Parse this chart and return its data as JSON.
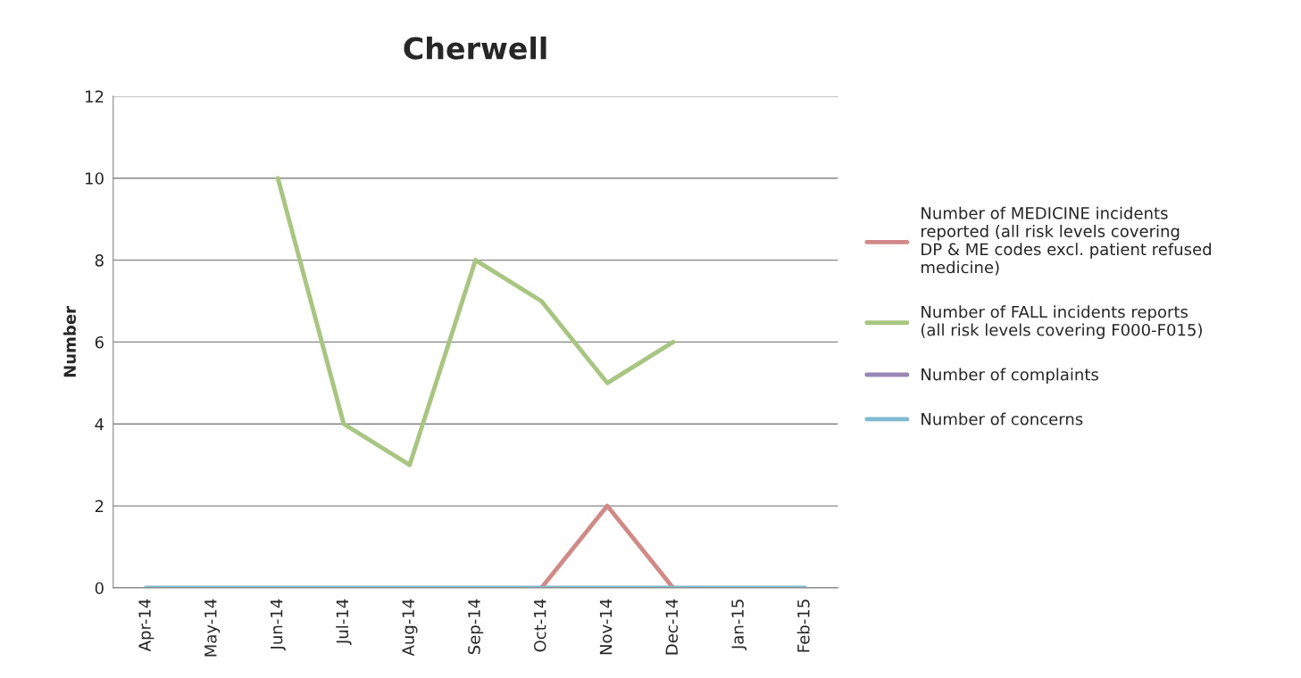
{
  "chart_data": {
    "type": "line",
    "title": "Cherwell",
    "ylabel": "Number",
    "categories": [
      "Apr-14",
      "May-14",
      "Jun-14",
      "Jul-14",
      "Aug-14",
      "Sep-14",
      "Oct-14",
      "Nov-14",
      "Dec-14",
      "Jan-15",
      "Feb-15"
    ],
    "series": [
      {
        "name": "Number of MEDICINE incidents reported (all risk levels covering DP & ME codes excl. patient refused medicine)",
        "color": "#d08a87",
        "values": [
          null,
          null,
          null,
          null,
          null,
          null,
          0,
          2,
          0,
          null,
          null
        ]
      },
      {
        "name": "Number of FALL incidents reports (all risk levels covering F000-F015)",
        "color": "#a8c581",
        "values": [
          null,
          null,
          10,
          4,
          3,
          8,
          7,
          5,
          6,
          null,
          null
        ]
      },
      {
        "name": "Number of complaints",
        "color": "#9b87b5",
        "values": [
          null,
          null,
          null,
          null,
          null,
          null,
          null,
          null,
          null,
          null,
          null
        ]
      },
      {
        "name": "Number of concerns",
        "color": "#7fbad0",
        "values": [
          0,
          0,
          0,
          0,
          0,
          0,
          0,
          0,
          0,
          0,
          0
        ]
      }
    ],
    "ylim": [
      0,
      12
    ],
    "yticks": [
      0,
      2,
      4,
      6,
      8,
      10,
      12
    ],
    "grid": "y",
    "legend": "right",
    "marker": "none",
    "line_style": "solid"
  }
}
